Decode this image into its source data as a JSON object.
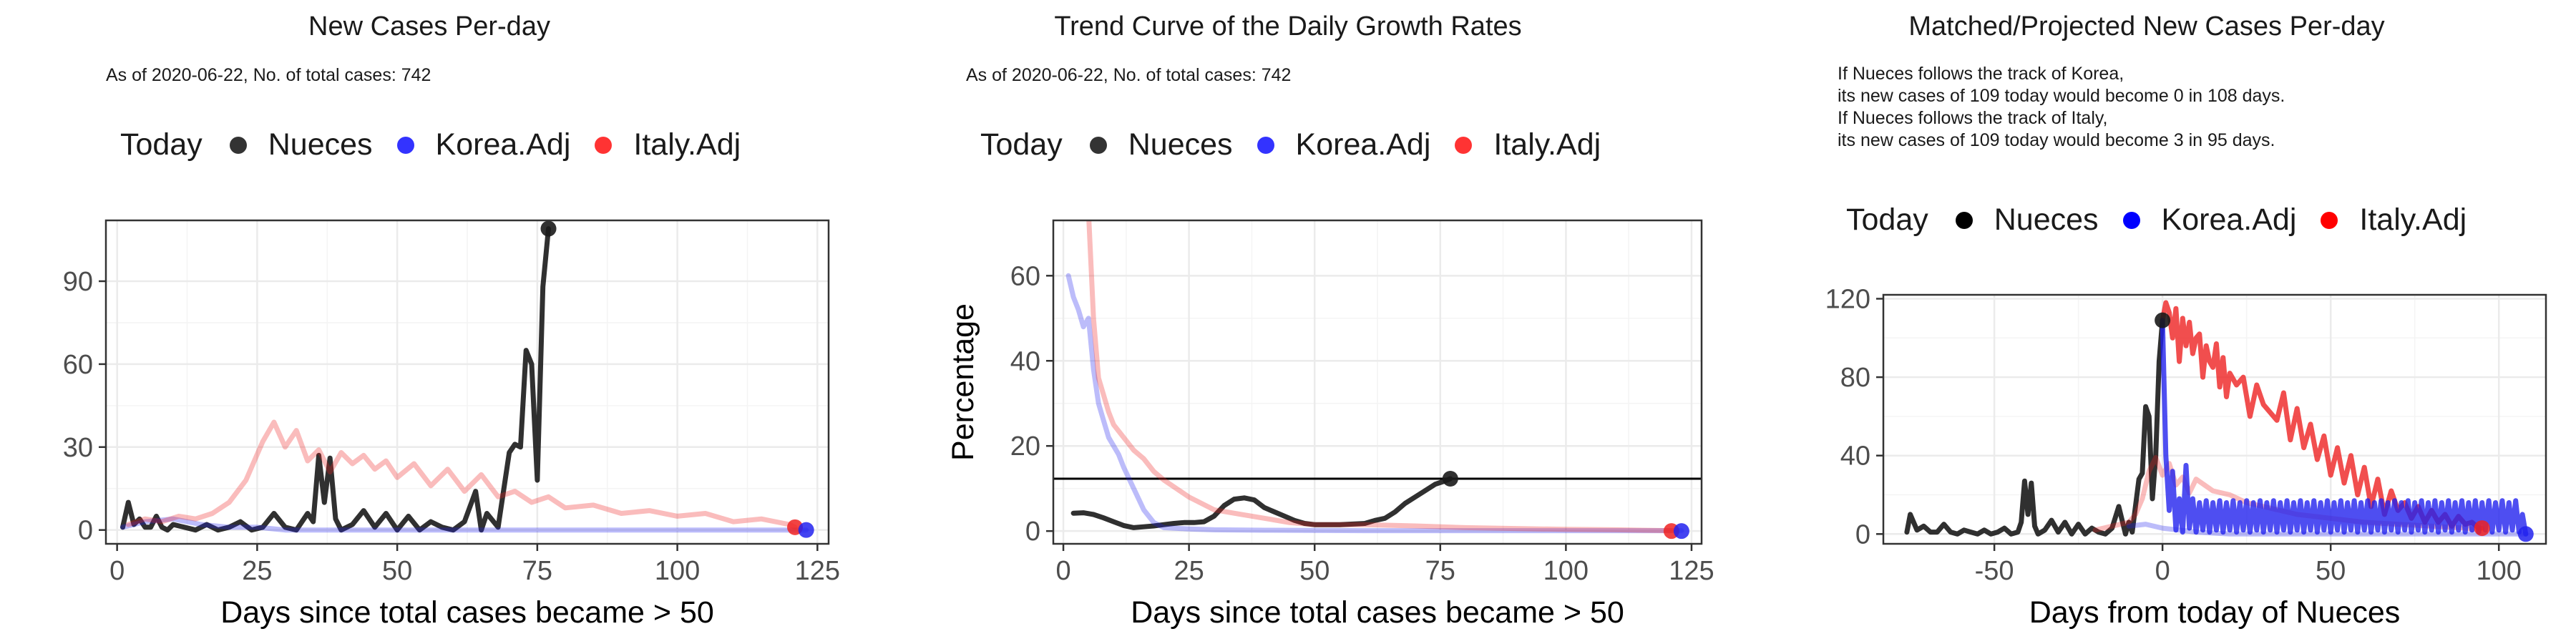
{
  "colors": {
    "nueces": "#1a1a1a",
    "korea": "#2222ee",
    "italy": "#ee2222",
    "grid": "#ebebeb",
    "axis": "#333333"
  },
  "chart_data": [
    {
      "type": "line",
      "title": "New Cases Per-day",
      "subtitle": "As of 2020-06-22, No. of total cases: 742",
      "legend_title": "Today",
      "legend_placement": "top",
      "xlabel": "Days since total cases became > 50",
      "ylabel": "",
      "xlim": [
        -2,
        127
      ],
      "ylim": [
        -5,
        112
      ],
      "xticks": [
        0,
        25,
        50,
        75,
        100,
        125
      ],
      "yticks": [
        0,
        30,
        60,
        90
      ],
      "grid": true,
      "series": [
        {
          "name": "Nueces",
          "color_key": "nueces",
          "x": [
            1,
            2,
            3,
            4,
            5,
            6,
            7,
            8,
            9,
            10,
            12,
            14,
            16,
            18,
            20,
            22,
            24,
            26,
            28,
            30,
            32,
            34,
            35,
            36,
            37,
            38,
            39,
            40,
            42,
            44,
            46,
            48,
            50,
            52,
            54,
            56,
            58,
            60,
            62,
            64,
            65,
            66,
            68,
            70,
            71,
            72,
            73,
            74,
            75,
            76,
            77
          ],
          "y": [
            1,
            10,
            2,
            4,
            1,
            1,
            5,
            1,
            0,
            2,
            1,
            0,
            2,
            0,
            1,
            3,
            0,
            1,
            6,
            1,
            0,
            6,
            3,
            27,
            10,
            26,
            4,
            0,
            2,
            7,
            1,
            6,
            0,
            5,
            0,
            3,
            1,
            0,
            3,
            14,
            0,
            6,
            1,
            28,
            31,
            30,
            65,
            60,
            18,
            88,
            109
          ]
        },
        {
          "name": "Korea.Adj",
          "color_key": "korea",
          "x": [
            1,
            5,
            10,
            15,
            20,
            25,
            30,
            40,
            60,
            80,
            100,
            115,
            123
          ],
          "y": [
            1,
            3,
            4,
            2,
            1,
            1,
            0,
            0,
            0,
            0,
            0,
            0,
            0
          ]
        },
        {
          "name": "Italy.Adj",
          "color_key": "italy",
          "x": [
            2,
            5,
            8,
            11,
            14,
            17,
            20,
            23,
            26,
            28,
            30,
            32,
            34,
            36,
            38,
            40,
            42,
            44,
            46,
            48,
            50,
            53,
            56,
            59,
            62,
            65,
            68,
            71,
            74,
            77,
            80,
            85,
            90,
            95,
            100,
            105,
            110,
            115,
            120,
            121
          ],
          "y": [
            2,
            4,
            3,
            5,
            4,
            6,
            10,
            18,
            32,
            39,
            30,
            36,
            25,
            29,
            21,
            28,
            24,
            27,
            22,
            25,
            19,
            24,
            16,
            22,
            14,
            20,
            12,
            14,
            10,
            12,
            8,
            9,
            6,
            7,
            5,
            6,
            3,
            4,
            2,
            1
          ]
        }
      ],
      "today_points": [
        {
          "name": "Nueces",
          "x": 77,
          "y": 109
        },
        {
          "name": "Italy.Adj",
          "x": 121,
          "y": 1
        },
        {
          "name": "Korea.Adj",
          "x": 123,
          "y": 0
        }
      ]
    },
    {
      "type": "line",
      "title": "Trend Curve of the Daily Growth Rates",
      "subtitle": "As of 2020-06-22, No. of total cases: 742",
      "legend_title": "Today",
      "legend_placement": "top",
      "xlabel": "Days since total cases became > 50",
      "ylabel": "Percentage",
      "xlim": [
        -2,
        127
      ],
      "ylim": [
        -3,
        73
      ],
      "xticks": [
        0,
        25,
        50,
        75,
        100,
        125
      ],
      "yticks": [
        0,
        20,
        40,
        60
      ],
      "grid": true,
      "reference_line_y": 12.3,
      "series": [
        {
          "name": "Nueces",
          "color_key": "nueces",
          "x": [
            2,
            4,
            6,
            8,
            10,
            12,
            14,
            16,
            18,
            20,
            22,
            24,
            26,
            28,
            30,
            32,
            34,
            36,
            38,
            40,
            42,
            44,
            46,
            48,
            50,
            55,
            60,
            62,
            64,
            66,
            68,
            70,
            72,
            74,
            76,
            77
          ],
          "y": [
            4.2,
            4.3,
            3.9,
            3.1,
            2.2,
            1.3,
            0.8,
            1.0,
            1.2,
            1.5,
            1.8,
            2.0,
            2.0,
            2.2,
            3.5,
            6.0,
            7.5,
            7.8,
            7.3,
            5.5,
            4.5,
            3.5,
            2.5,
            1.8,
            1.5,
            1.5,
            1.8,
            2.5,
            3.0,
            4.5,
            6.5,
            8.0,
            9.5,
            11.0,
            11.8,
            12.3
          ]
        },
        {
          "name": "Korea.Adj",
          "color_key": "korea",
          "x": [
            1,
            2,
            3,
            4,
            5,
            6,
            7,
            8,
            9,
            10,
            11,
            12,
            14,
            16,
            18,
            20,
            25,
            30,
            40,
            60,
            80,
            100,
            123
          ],
          "y": [
            60,
            55,
            52,
            48,
            50,
            38,
            30,
            26,
            22,
            20,
            18,
            15,
            10,
            5,
            2,
            0.8,
            0.5,
            0.3,
            0.2,
            0.1,
            0.1,
            0.1,
            0.1
          ]
        },
        {
          "name": "Italy.Adj",
          "color_key": "italy",
          "x": [
            5,
            6,
            7,
            8,
            9,
            10,
            12,
            14,
            16,
            18,
            20,
            25,
            30,
            35,
            40,
            45,
            50,
            55,
            60,
            70,
            80,
            90,
            100,
            110,
            121
          ],
          "y": [
            75,
            50,
            36,
            32,
            28,
            25,
            22,
            19,
            17,
            14,
            12,
            8,
            5,
            4,
            3,
            2,
            1.5,
            1.5,
            1.5,
            1.2,
            0.8,
            0.6,
            0.4,
            0.3,
            0.1
          ]
        }
      ],
      "today_points": [
        {
          "name": "Nueces",
          "x": 77,
          "y": 12.3
        },
        {
          "name": "Italy.Adj",
          "x": 121,
          "y": 0
        },
        {
          "name": "Korea.Adj",
          "x": 123,
          "y": 0
        }
      ]
    },
    {
      "type": "line",
      "title": "Matched/Projected New Cases Per-day",
      "subtitle": "If Nueces follows the track of Korea,\nits new cases of 109 today would become 0 in 108 days.\nIf Nueces follows the track of Italy,\nits new cases of 109 today would become 3 in 95 days.",
      "legend_title": "Today",
      "legend_placement": "top",
      "xlabel": "Days from today of Nueces",
      "ylabel": "",
      "xlim": [
        -83,
        114
      ],
      "ylim": [
        -5,
        122
      ],
      "xticks": [
        -50,
        0,
        50,
        100
      ],
      "yticks": [
        0,
        40,
        80,
        120
      ],
      "grid": true,
      "series": [
        {
          "name": "Nueces",
          "color_key": "nueces",
          "faded": false,
          "x": [
            -76,
            -75,
            -73,
            -71,
            -69,
            -67,
            -65,
            -63,
            -61,
            -59,
            -57,
            -55,
            -53,
            -51,
            -49,
            -47,
            -45,
            -43,
            -42,
            -41,
            -40,
            -39,
            -38,
            -37,
            -35,
            -33,
            -31,
            -29,
            -27,
            -25,
            -23,
            -21,
            -19,
            -17,
            -15,
            -13,
            -11,
            -10,
            -9,
            -7,
            -6,
            -5,
            -4,
            -3,
            -2,
            -1,
            0
          ],
          "y": [
            1,
            10,
            2,
            4,
            1,
            1,
            5,
            1,
            0,
            2,
            1,
            0,
            2,
            0,
            1,
            3,
            0,
            1,
            6,
            27,
            10,
            26,
            4,
            0,
            2,
            7,
            1,
            6,
            0,
            5,
            0,
            3,
            1,
            0,
            3,
            14,
            0,
            6,
            1,
            28,
            31,
            65,
            60,
            18,
            40,
            88,
            109
          ]
        },
        {
          "name": "Italy.Adj (history)",
          "color_key": "italy",
          "faded": true,
          "x": [
            -20,
            -15,
            -10,
            -8,
            -6,
            -4,
            -2,
            0,
            2,
            4,
            6,
            8,
            10,
            15,
            20,
            25,
            30,
            35,
            40,
            50,
            60,
            70,
            80,
            90,
            95
          ],
          "y": [
            2,
            4,
            6,
            10,
            18,
            32,
            39,
            30,
            36,
            25,
            29,
            21,
            28,
            22,
            20,
            16,
            14,
            12,
            10,
            8,
            6,
            5,
            4,
            3,
            2
          ]
        },
        {
          "name": "Korea.Adj (history)",
          "color_key": "korea",
          "faded": true,
          "x": [
            -10,
            -5,
            0,
            5,
            10,
            20,
            40,
            60,
            80,
            100,
            108
          ],
          "y": [
            4,
            5,
            3,
            2,
            1,
            0,
            0,
            0,
            0,
            0,
            0
          ]
        },
        {
          "name": "Italy.Adj",
          "color_key": "italy",
          "faded": false,
          "x": [
            0,
            1,
            2,
            3,
            4,
            5,
            6,
            7,
            8,
            9,
            10,
            11,
            12,
            13,
            14,
            15,
            16,
            17,
            18,
            19,
            20,
            22,
            24,
            26,
            28,
            30,
            32,
            34,
            36,
            38,
            40,
            42,
            44,
            46,
            48,
            50,
            52,
            54,
            56,
            58,
            60,
            62,
            64,
            66,
            68,
            70,
            72,
            74,
            76,
            78,
            80,
            82,
            84,
            86,
            88,
            90,
            92,
            94,
            95
          ],
          "y": [
            109,
            118,
            113,
            100,
            115,
            88,
            110,
            96,
            108,
            92,
            100,
            102,
            80,
            96,
            88,
            85,
            97,
            75,
            90,
            70,
            82,
            76,
            80,
            60,
            76,
            66,
            62,
            58,
            72,
            48,
            64,
            44,
            56,
            38,
            50,
            30,
            44,
            26,
            40,
            20,
            34,
            14,
            28,
            10,
            22,
            12,
            16,
            8,
            14,
            6,
            12,
            6,
            10,
            4,
            9,
            5,
            6,
            3,
            3
          ]
        },
        {
          "name": "Korea.Adj",
          "color_key": "korea",
          "faded": false,
          "oscillating": true,
          "x": [
            0,
            1,
            2,
            3,
            4,
            5,
            6,
            7,
            8,
            9,
            10,
            11,
            12,
            13,
            14,
            15,
            16,
            17,
            18,
            19,
            20,
            21,
            22,
            23,
            24,
            25,
            26,
            27,
            28,
            29,
            30,
            31,
            32,
            33,
            34,
            35,
            36,
            37,
            38,
            39,
            40,
            41,
            42,
            43,
            44,
            45,
            46,
            47,
            48,
            49,
            50,
            51,
            52,
            53,
            54,
            55,
            56,
            57,
            58,
            59,
            60,
            61,
            62,
            63,
            64,
            65,
            66,
            67,
            68,
            69,
            70,
            71,
            72,
            73,
            74,
            75,
            76,
            77,
            78,
            79,
            80,
            81,
            82,
            83,
            84,
            85,
            86,
            87,
            88,
            89,
            90,
            91,
            92,
            93,
            94,
            95,
            96,
            97,
            98,
            99,
            100,
            101,
            102,
            103,
            104,
            105,
            106,
            107,
            108
          ],
          "y": [
            109,
            40,
            12,
            32,
            2,
            18,
            1,
            35,
            3,
            18,
            1,
            16,
            2,
            17,
            1,
            16,
            2,
            17,
            1,
            16,
            2,
            17,
            1,
            16,
            2,
            17,
            1,
            16,
            2,
            17,
            1,
            16,
            2,
            17,
            1,
            16,
            2,
            17,
            1,
            16,
            2,
            17,
            1,
            16,
            2,
            17,
            1,
            16,
            2,
            17,
            1,
            16,
            2,
            17,
            1,
            16,
            2,
            17,
            1,
            16,
            2,
            17,
            1,
            16,
            2,
            17,
            1,
            16,
            2,
            17,
            1,
            16,
            2,
            17,
            1,
            16,
            2,
            17,
            1,
            16,
            2,
            17,
            1,
            16,
            2,
            17,
            1,
            16,
            2,
            17,
            1,
            16,
            2,
            17,
            1,
            16,
            2,
            17,
            1,
            16,
            2,
            17,
            1,
            16,
            2,
            17,
            1,
            10,
            0
          ]
        }
      ],
      "today_points": [
        {
          "name": "Nueces",
          "x": 0,
          "y": 109
        },
        {
          "name": "Italy.Adj",
          "x": 95,
          "y": 3
        },
        {
          "name": "Korea.Adj",
          "x": 108,
          "y": 0
        }
      ]
    }
  ],
  "legends": [
    {
      "title": "Today",
      "items": [
        "Nueces",
        "Korea.Adj",
        "Italy.Adj"
      ]
    },
    {
      "title": "Today",
      "items": [
        "Nueces",
        "Korea.Adj",
        "Italy.Adj"
      ]
    },
    {
      "title": "Today",
      "items": [
        "Nueces",
        "Korea.Adj",
        "Italy.Adj"
      ]
    }
  ]
}
